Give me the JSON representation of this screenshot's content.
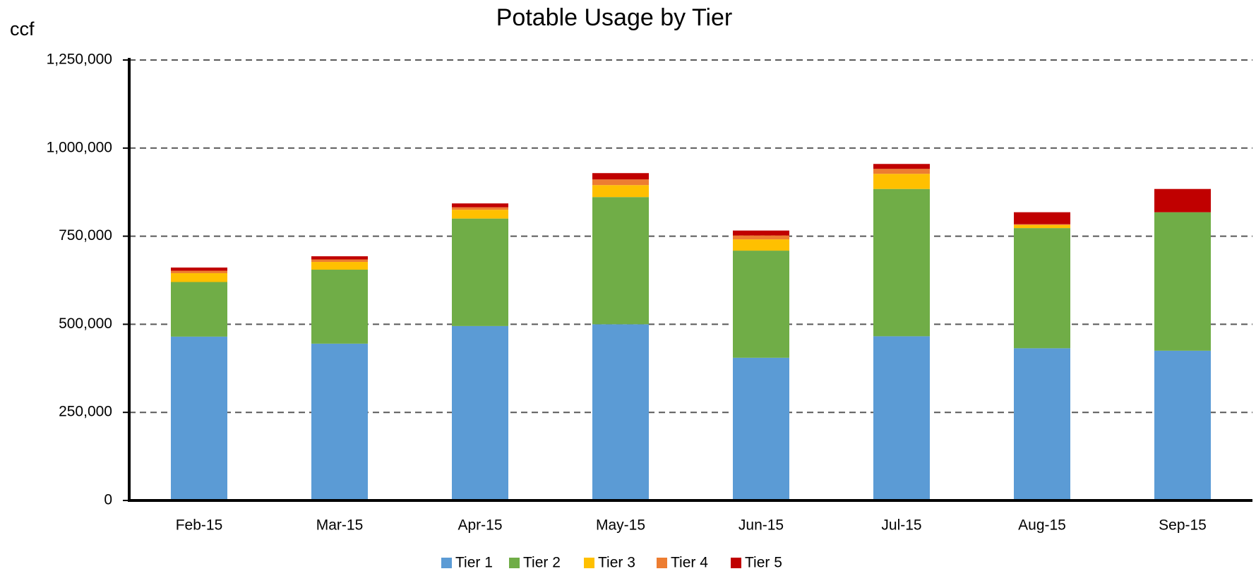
{
  "chart_data": {
    "type": "stacked_bar",
    "title": "Potable Usage by Tier",
    "y_label": "ccf",
    "categories": [
      "Feb-15",
      "Mar-15",
      "Apr-15",
      "May-15",
      "Jun-15",
      "Jul-15",
      "Aug-15",
      "Sep-15"
    ],
    "series": [
      {
        "name": "Tier 1",
        "color": "#5b9bd5",
        "values": [
          465000,
          445000,
          495000,
          500000,
          405000,
          466000,
          432000,
          425000
        ]
      },
      {
        "name": "Tier 2",
        "color": "#70ad47",
        "values": [
          155000,
          210000,
          305000,
          361000,
          304000,
          418000,
          341000,
          393000
        ]
      },
      {
        "name": "Tier 3",
        "color": "#ffc000",
        "values": [
          25000,
          22000,
          25000,
          34000,
          32000,
          43000,
          9000,
          0
        ]
      },
      {
        "name": "Tier 4",
        "color": "#ed7d31",
        "values": [
          7000,
          7000,
          7000,
          16000,
          11000,
          14000,
          2000,
          0
        ]
      },
      {
        "name": "Tier 5",
        "color": "#c00000",
        "values": [
          9000,
          9000,
          11000,
          18000,
          14000,
          14000,
          34000,
          66000
        ]
      }
    ],
    "ylim": [
      0,
      1250000
    ],
    "yticks": [
      0,
      {
        "value": 250000,
        "label": "250,000"
      },
      {
        "value": 500000,
        "label": "500,000"
      },
      {
        "value": 750000,
        "label": "750,000"
      },
      {
        "value": 1000000,
        "label": "1,000,000"
      },
      {
        "value": 1250000,
        "label": "1,250,000"
      }
    ],
    "grid": true,
    "legend": "bottom"
  }
}
